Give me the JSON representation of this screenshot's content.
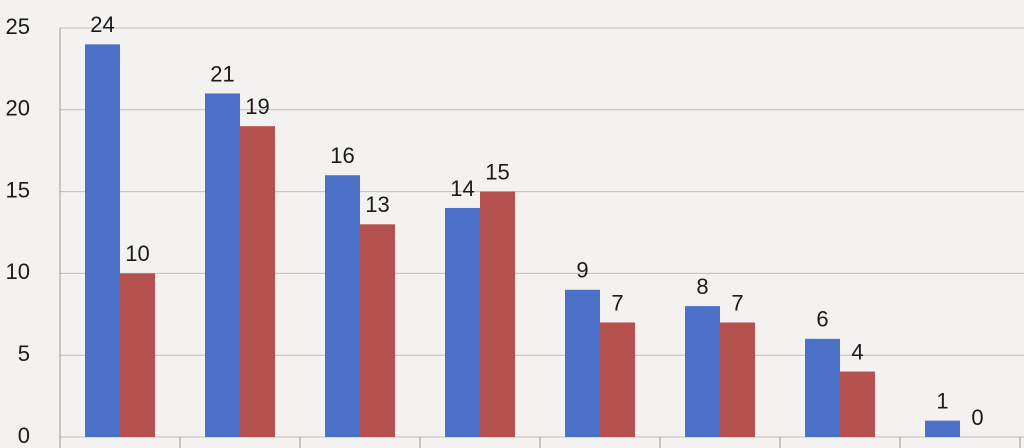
{
  "chart_data": {
    "type": "bar",
    "categories": [
      null,
      null,
      null,
      null,
      null,
      null,
      null,
      null
    ],
    "series": [
      {
        "color": "#4a70c8",
        "values": [
          24,
          21,
          16,
          14,
          9,
          8,
          6,
          1
        ]
      },
      {
        "color": "#b4504d",
        "values": [
          10,
          19,
          13,
          15,
          7,
          7,
          4,
          0
        ]
      }
    ],
    "ylim": [
      0,
      25
    ],
    "yticks": [
      0,
      5,
      10,
      15,
      20,
      25
    ],
    "grid": true
  }
}
